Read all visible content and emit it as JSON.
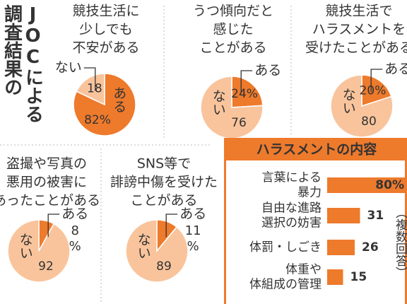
{
  "title": [
    "JOCによる",
    "調査結果の"
  ],
  "chart_data": [
    {
      "type": "pie",
      "title": [
        "競技生活に",
        "少しでも",
        "不安がある"
      ],
      "categories": [
        "ある",
        "ない"
      ],
      "values": [
        82,
        18
      ],
      "value_labels": [
        "82%",
        "18"
      ],
      "colors": [
        "#ee7a2c",
        "#f9c49c"
      ]
    },
    {
      "type": "pie",
      "title": [
        "うつ傾向だと",
        "感じた",
        "ことがある"
      ],
      "categories": [
        "ある",
        "ない"
      ],
      "values": [
        24,
        76
      ],
      "value_labels": [
        "24%",
        "76"
      ],
      "colors": [
        "#ee7a2c",
        "#f9c49c"
      ]
    },
    {
      "type": "pie",
      "title": [
        "競技生活で",
        "ハラスメントを",
        "受けたことがある"
      ],
      "categories": [
        "ある",
        "ない"
      ],
      "values": [
        20,
        80
      ],
      "value_labels": [
        "20%",
        "80"
      ],
      "colors": [
        "#ee7a2c",
        "#f9c49c"
      ]
    },
    {
      "type": "pie",
      "title": [
        "盗撮や写真の",
        "悪用の被害に",
        "あったことがある"
      ],
      "categories": [
        "ある",
        "ない"
      ],
      "values": [
        8,
        92
      ],
      "value_labels": [
        "8%",
        "92"
      ],
      "colors": [
        "#ee7a2c",
        "#f9c49c"
      ]
    },
    {
      "type": "pie",
      "title": [
        "SNS等で",
        "誹謗中傷を受けた",
        "ことがある"
      ],
      "categories": [
        "ある",
        "ない"
      ],
      "values": [
        11,
        89
      ],
      "value_labels": [
        "11%",
        "89"
      ],
      "colors": [
        "#ee7a2c",
        "#f9c49c"
      ]
    },
    {
      "type": "bar",
      "orientation": "horizontal",
      "title": "ハラスメントの内容",
      "categories": [
        [
          "言葉による",
          "暴力"
        ],
        [
          "自由な進路",
          "選択の妨害"
        ],
        [
          "体罰・しごき"
        ],
        [
          "体重や",
          "体組成の管理"
        ]
      ],
      "values": [
        80,
        31,
        26,
        15
      ],
      "value_labels": [
        "80%",
        "31",
        "26",
        "15"
      ],
      "color": "#ee7a2c",
      "note": "（複数回答）"
    }
  ]
}
